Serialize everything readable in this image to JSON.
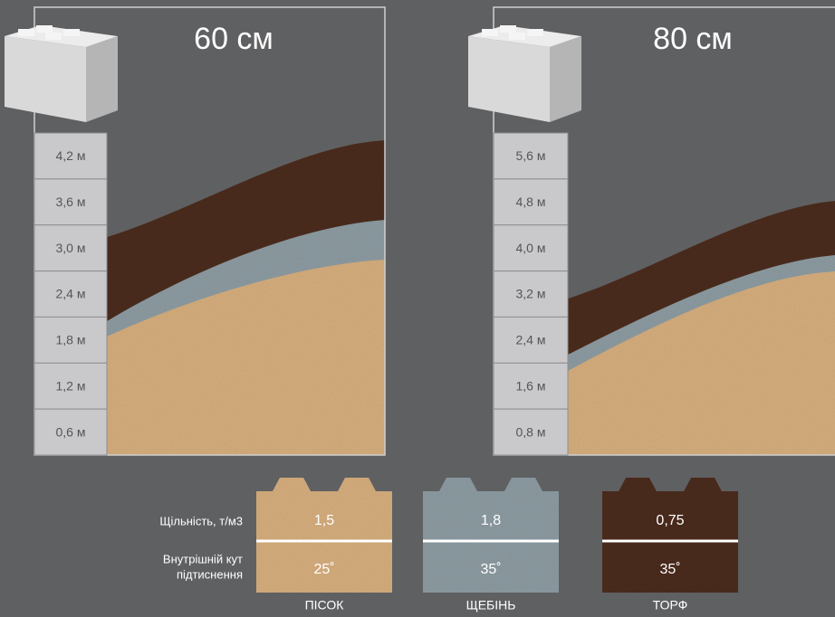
{
  "panels": [
    {
      "title": "60 см",
      "levels": [
        "4,2 м",
        "3,6 м",
        "3,0 м",
        "2,4 м",
        "1,8 м",
        "1,2 м",
        "0,6 м"
      ]
    },
    {
      "title": "80 см",
      "levels": [
        "5,6 м",
        "4,8 м",
        "4,0 м",
        "3,2 м",
        "2,4 м",
        "1,6 м",
        "0,8 м"
      ]
    }
  ],
  "legend": {
    "density_label": "Щільність, т/м3",
    "angle_label": [
      "Внутрішній кут",
      "підтиснення"
    ],
    "materials": [
      {
        "name": "ПІСОК",
        "density": "1,5",
        "angle": "25˚"
      },
      {
        "name": "ЩЕБІНЬ",
        "density": "1,8",
        "angle": "35˚"
      },
      {
        "name": "ТОРФ",
        "density": "0,75",
        "angle": "35˚"
      }
    ]
  }
}
